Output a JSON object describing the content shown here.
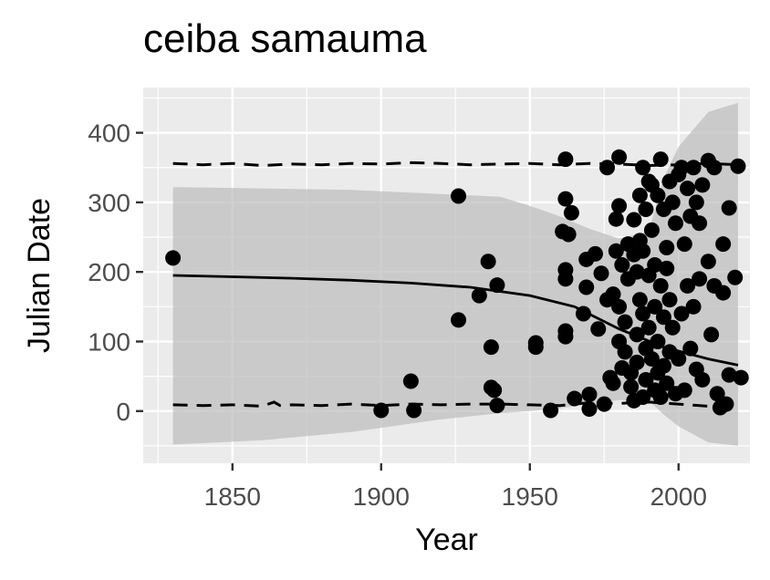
{
  "chart_data": {
    "type": "scatter",
    "title": "ceiba samauma",
    "xlabel": "Year",
    "ylabel": "Julian Date",
    "xlim": [
      1820,
      2024
    ],
    "ylim": [
      -75,
      465
    ],
    "xticks": [
      1850,
      1900,
      1950,
      2000
    ],
    "yticks": [
      0,
      100,
      200,
      300,
      400
    ],
    "grid": true,
    "colors": {
      "panel": "#ebebeb",
      "grid": "#ffffff",
      "points": "#000000",
      "ribbon": "#bfbfbf",
      "text": "#4d4d4d"
    },
    "fit_line": {
      "x": [
        1830,
        1850,
        1870,
        1890,
        1910,
        1930,
        1950,
        1965,
        1980,
        1995,
        2010,
        2020
      ],
      "y": [
        195,
        193,
        191,
        188,
        184,
        178,
        166,
        150,
        118,
        92,
        75,
        66
      ]
    },
    "ribbon": {
      "x": [
        1830,
        1860,
        1890,
        1920,
        1940,
        1950,
        1960,
        1970,
        1980,
        1990,
        1995,
        2000,
        2010,
        2020
      ],
      "upper": [
        322,
        320,
        318,
        312,
        308,
        295,
        280,
        262,
        248,
        258,
        335,
        380,
        430,
        443
      ],
      "lower": [
        -48,
        -42,
        -30,
        -12,
        -3,
        0,
        4,
        10,
        16,
        15,
        -5,
        -22,
        -45,
        -50
      ]
    },
    "upper_dashed": {
      "x": [
        1830,
        1840,
        1850,
        1860,
        1870,
        1880,
        1890,
        1900,
        1910,
        1920,
        1930,
        1940,
        1950,
        1960,
        1970,
        1980,
        1990,
        2000,
        2010,
        2020
      ],
      "y": [
        356,
        354,
        356,
        353,
        355,
        354,
        356,
        355,
        357,
        356,
        354,
        355,
        356,
        354,
        356,
        355,
        353,
        354,
        356,
        354
      ]
    },
    "lower_dashed": {
      "x": [
        1830,
        1840,
        1850,
        1860,
        1864,
        1866,
        1870,
        1880,
        1890,
        1900,
        1910,
        1920,
        1930,
        1940,
        1950,
        1960,
        1970,
        1980,
        1990,
        2000,
        2010,
        2020
      ],
      "y": [
        9,
        8,
        9,
        7,
        13,
        8,
        9,
        8,
        10,
        8,
        10,
        9,
        10,
        10,
        9,
        8,
        12,
        11,
        13,
        10,
        7,
        6
      ]
    },
    "points": [
      {
        "x": 1830,
        "y": 220
      },
      {
        "x": 1900,
        "y": 1
      },
      {
        "x": 1910,
        "y": 43
      },
      {
        "x": 1911,
        "y": 1
      },
      {
        "x": 1926,
        "y": 309
      },
      {
        "x": 1926,
        "y": 131
      },
      {
        "x": 1933,
        "y": 166
      },
      {
        "x": 1936,
        "y": 215
      },
      {
        "x": 1937,
        "y": 92
      },
      {
        "x": 1937,
        "y": 34
      },
      {
        "x": 1938,
        "y": 30
      },
      {
        "x": 1939,
        "y": 181
      },
      {
        "x": 1939,
        "y": 8
      },
      {
        "x": 1952,
        "y": 98
      },
      {
        "x": 1952,
        "y": 92
      },
      {
        "x": 1957,
        "y": 1
      },
      {
        "x": 1961,
        "y": 258
      },
      {
        "x": 1962,
        "y": 362
      },
      {
        "x": 1962,
        "y": 305
      },
      {
        "x": 1962,
        "y": 203
      },
      {
        "x": 1962,
        "y": 190
      },
      {
        "x": 1962,
        "y": 115
      },
      {
        "x": 1962,
        "y": 107
      },
      {
        "x": 1963,
        "y": 254
      },
      {
        "x": 1964,
        "y": 285
      },
      {
        "x": 1965,
        "y": 18
      },
      {
        "x": 1968,
        "y": 140
      },
      {
        "x": 1969,
        "y": 218
      },
      {
        "x": 1969,
        "y": 178
      },
      {
        "x": 1970,
        "y": 24
      },
      {
        "x": 1970,
        "y": 3
      },
      {
        "x": 1972,
        "y": 226
      },
      {
        "x": 1973,
        "y": 118
      },
      {
        "x": 1974,
        "y": 198
      },
      {
        "x": 1975,
        "y": 10
      },
      {
        "x": 1976,
        "y": 350
      },
      {
        "x": 1976,
        "y": 160
      },
      {
        "x": 1977,
        "y": 48
      },
      {
        "x": 1978,
        "y": 40
      },
      {
        "x": 1978,
        "y": 168
      },
      {
        "x": 1979,
        "y": 230
      },
      {
        "x": 1979,
        "y": 276
      },
      {
        "x": 1980,
        "y": 365
      },
      {
        "x": 1980,
        "y": 295
      },
      {
        "x": 1980,
        "y": 150
      },
      {
        "x": 1980,
        "y": 100
      },
      {
        "x": 1981,
        "y": 210
      },
      {
        "x": 1981,
        "y": 62
      },
      {
        "x": 1982,
        "y": 128
      },
      {
        "x": 1982,
        "y": 85
      },
      {
        "x": 1983,
        "y": 190
      },
      {
        "x": 1983,
        "y": 240
      },
      {
        "x": 1984,
        "y": 55
      },
      {
        "x": 1984,
        "y": 35
      },
      {
        "x": 1985,
        "y": 225
      },
      {
        "x": 1985,
        "y": 275
      },
      {
        "x": 1985,
        "y": 15
      },
      {
        "x": 1986,
        "y": 200
      },
      {
        "x": 1986,
        "y": 110
      },
      {
        "x": 1986,
        "y": 70
      },
      {
        "x": 1987,
        "y": 310
      },
      {
        "x": 1987,
        "y": 160
      },
      {
        "x": 1987,
        "y": 245
      },
      {
        "x": 1988,
        "y": 350
      },
      {
        "x": 1988,
        "y": 230
      },
      {
        "x": 1988,
        "y": 140
      },
      {
        "x": 1988,
        "y": 20
      },
      {
        "x": 1989,
        "y": 290
      },
      {
        "x": 1989,
        "y": 90
      },
      {
        "x": 1989,
        "y": 45
      },
      {
        "x": 1990,
        "y": 330
      },
      {
        "x": 1990,
        "y": 195
      },
      {
        "x": 1990,
        "y": 120
      },
      {
        "x": 1991,
        "y": 325
      },
      {
        "x": 1991,
        "y": 260
      },
      {
        "x": 1991,
        "y": 75
      },
      {
        "x": 1992,
        "y": 210
      },
      {
        "x": 1992,
        "y": 150
      },
      {
        "x": 1992,
        "y": 30
      },
      {
        "x": 1993,
        "y": 310
      },
      {
        "x": 1993,
        "y": 100
      },
      {
        "x": 1993,
        "y": 55
      },
      {
        "x": 1994,
        "y": 362
      },
      {
        "x": 1994,
        "y": 180
      },
      {
        "x": 1994,
        "y": 20
      },
      {
        "x": 1995,
        "y": 290
      },
      {
        "x": 1995,
        "y": 135
      },
      {
        "x": 1995,
        "y": 65
      },
      {
        "x": 1996,
        "y": 205
      },
      {
        "x": 1996,
        "y": 235
      },
      {
        "x": 1996,
        "y": 40
      },
      {
        "x": 1997,
        "y": 330
      },
      {
        "x": 1997,
        "y": 160
      },
      {
        "x": 1997,
        "y": 85
      },
      {
        "x": 1998,
        "y": 300
      },
      {
        "x": 1998,
        "y": 120
      },
      {
        "x": 1999,
        "y": 270
      },
      {
        "x": 1999,
        "y": 25
      },
      {
        "x": 2000,
        "y": 340
      },
      {
        "x": 2000,
        "y": 75
      },
      {
        "x": 2001,
        "y": 350
      },
      {
        "x": 2001,
        "y": 140
      },
      {
        "x": 2002,
        "y": 240
      },
      {
        "x": 2002,
        "y": 30
      },
      {
        "x": 2003,
        "y": 320
      },
      {
        "x": 2003,
        "y": 180
      },
      {
        "x": 2004,
        "y": 280
      },
      {
        "x": 2004,
        "y": 90
      },
      {
        "x": 2005,
        "y": 350
      },
      {
        "x": 2005,
        "y": 150
      },
      {
        "x": 2006,
        "y": 300
      },
      {
        "x": 2006,
        "y": 60
      },
      {
        "x": 2007,
        "y": 190
      },
      {
        "x": 2007,
        "y": 270
      },
      {
        "x": 2008,
        "y": 325
      },
      {
        "x": 2008,
        "y": 45
      },
      {
        "x": 2010,
        "y": 360
      },
      {
        "x": 2010,
        "y": 215
      },
      {
        "x": 2011,
        "y": 110
      },
      {
        "x": 2012,
        "y": 350
      },
      {
        "x": 2012,
        "y": 180
      },
      {
        "x": 2013,
        "y": 25
      },
      {
        "x": 2014,
        "y": 5
      },
      {
        "x": 2015,
        "y": 240
      },
      {
        "x": 2015,
        "y": 170
      },
      {
        "x": 2016,
        "y": 10
      },
      {
        "x": 2017,
        "y": 292
      },
      {
        "x": 2017,
        "y": 52
      },
      {
        "x": 2019,
        "y": 192
      },
      {
        "x": 2020,
        "y": 352
      },
      {
        "x": 2021,
        "y": 48
      }
    ]
  }
}
